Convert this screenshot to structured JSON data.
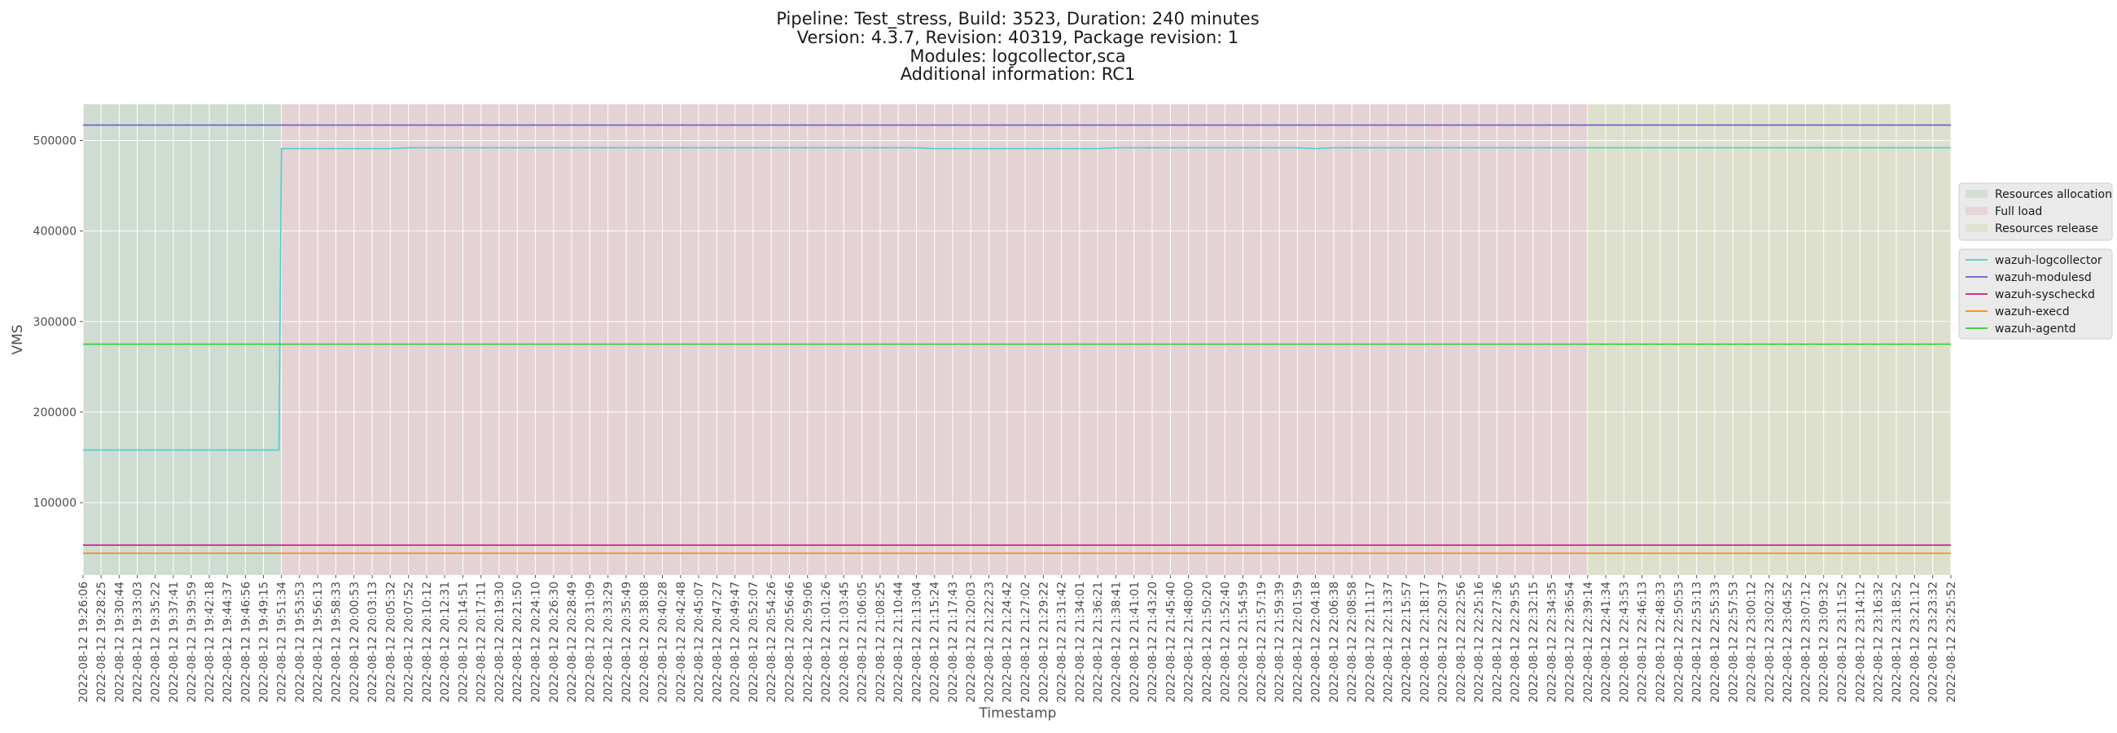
{
  "chart_data": {
    "type": "line",
    "title": [
      "Pipeline: Test_stress, Build: 3523, Duration: 240 minutes",
      "Version: 4.3.7, Revision: 40319, Package revision: 1",
      "Modules: logcollector,sca",
      "Additional information: RC1"
    ],
    "xlabel": "Timestamp",
    "ylabel": "VMS",
    "ylim": [
      20000,
      540000
    ],
    "yticks": [
      100000,
      200000,
      300000,
      400000,
      500000
    ],
    "grid": true,
    "legend_placement": "right",
    "x_tick_labels": [
      "2022-08-12 19:26:06",
      "2022-08-12 19:28:25",
      "2022-08-12 19:30:44",
      "2022-08-12 19:33:03",
      "2022-08-12 19:35:22",
      "2022-08-12 19:37:41",
      "2022-08-12 19:39:59",
      "2022-08-12 19:42:18",
      "2022-08-12 19:44:37",
      "2022-08-12 19:46:56",
      "2022-08-12 19:49:15",
      "2022-08-12 19:51:34",
      "2022-08-12 19:53:53",
      "2022-08-12 19:56:13",
      "2022-08-12 19:58:33",
      "2022-08-12 20:00:53",
      "2022-08-12 20:03:13",
      "2022-08-12 20:05:32",
      "2022-08-12 20:07:52",
      "2022-08-12 20:10:12",
      "2022-08-12 20:12:31",
      "2022-08-12 20:14:51",
      "2022-08-12 20:17:11",
      "2022-08-12 20:19:30",
      "2022-08-12 20:21:50",
      "2022-08-12 20:24:10",
      "2022-08-12 20:26:30",
      "2022-08-12 20:28:49",
      "2022-08-12 20:31:09",
      "2022-08-12 20:33:29",
      "2022-08-12 20:35:49",
      "2022-08-12 20:38:08",
      "2022-08-12 20:40:28",
      "2022-08-12 20:42:48",
      "2022-08-12 20:45:07",
      "2022-08-12 20:47:27",
      "2022-08-12 20:49:47",
      "2022-08-12 20:52:07",
      "2022-08-12 20:54:26",
      "2022-08-12 20:56:46",
      "2022-08-12 20:59:06",
      "2022-08-12 21:01:26",
      "2022-08-12 21:03:45",
      "2022-08-12 21:06:05",
      "2022-08-12 21:08:25",
      "2022-08-12 21:10:44",
      "2022-08-12 21:13:04",
      "2022-08-12 21:15:24",
      "2022-08-12 21:17:43",
      "2022-08-12 21:20:03",
      "2022-08-12 21:22:23",
      "2022-08-12 21:24:42",
      "2022-08-12 21:27:02",
      "2022-08-12 21:29:22",
      "2022-08-12 21:31:42",
      "2022-08-12 21:34:01",
      "2022-08-12 21:36:21",
      "2022-08-12 21:38:41",
      "2022-08-12 21:41:01",
      "2022-08-12 21:43:20",
      "2022-08-12 21:45:40",
      "2022-08-12 21:48:00",
      "2022-08-12 21:50:20",
      "2022-08-12 21:52:40",
      "2022-08-12 21:54:59",
      "2022-08-12 21:57:19",
      "2022-08-12 21:59:39",
      "2022-08-12 22:01:59",
      "2022-08-12 22:04:18",
      "2022-08-12 22:06:38",
      "2022-08-12 22:08:58",
      "2022-08-12 22:11:17",
      "2022-08-12 22:13:37",
      "2022-08-12 22:15:57",
      "2022-08-12 22:18:17",
      "2022-08-12 22:20:37",
      "2022-08-12 22:22:56",
      "2022-08-12 22:25:16",
      "2022-08-12 22:27:36",
      "2022-08-12 22:29:55",
      "2022-08-12 22:32:15",
      "2022-08-12 22:34:35",
      "2022-08-12 22:36:54",
      "2022-08-12 22:39:14",
      "2022-08-12 22:41:34",
      "2022-08-12 22:43:53",
      "2022-08-12 22:46:13",
      "2022-08-12 22:48:33",
      "2022-08-12 22:50:53",
      "2022-08-12 22:53:13",
      "2022-08-12 22:55:33",
      "2022-08-12 22:57:53",
      "2022-08-12 23:00:12",
      "2022-08-12 23:02:32",
      "2022-08-12 23:04:52",
      "2022-08-12 23:07:12",
      "2022-08-12 23:09:32",
      "2022-08-12 23:11:52",
      "2022-08-12 23:14:12",
      "2022-08-12 23:16:32",
      "2022-08-12 23:18:52",
      "2022-08-12 23:21:12",
      "2022-08-12 23:23:32",
      "2022-08-12 23:25:52"
    ],
    "phases": [
      {
        "name": "Resources allocation",
        "start": "2022-08-12 19:26:06",
        "end": "2022-08-12 19:51:34",
        "color": "#b8d4c0"
      },
      {
        "name": "Full load",
        "start": "2022-08-12 19:51:34",
        "end": "2022-08-12 22:39:14",
        "color": "#e3c0c4"
      },
      {
        "name": "Resources release",
        "start": "2022-08-12 22:39:14",
        "end": "2022-08-12 23:25:52",
        "color": "#d6dcb4"
      }
    ],
    "series": [
      {
        "name": "wazuh-logcollector",
        "color": "#48d1cc",
        "points": [
          {
            "x": "2022-08-12 19:26:06",
            "y": 158000
          },
          {
            "x": "2022-08-12 19:51:15",
            "y": 158000
          },
          {
            "x": "2022-08-12 19:51:34",
            "y": 491000
          },
          {
            "x": "2022-08-12 20:05:32",
            "y": 491000
          },
          {
            "x": "2022-08-12 20:07:52",
            "y": 492000
          },
          {
            "x": "2022-08-12 21:13:04",
            "y": 492000
          },
          {
            "x": "2022-08-12 21:15:24",
            "y": 491000
          },
          {
            "x": "2022-08-12 21:36:21",
            "y": 491000
          },
          {
            "x": "2022-08-12 21:38:41",
            "y": 492000
          },
          {
            "x": "2022-08-12 22:01:59",
            "y": 492000
          },
          {
            "x": "2022-08-12 22:04:18",
            "y": 491000
          },
          {
            "x": "2022-08-12 22:06:38",
            "y": 492000
          },
          {
            "x": "2022-08-12 22:46:13",
            "y": 492000
          },
          {
            "x": "2022-08-12 23:25:52",
            "y": 492000
          }
        ]
      },
      {
        "name": "wazuh-modulesd",
        "color": "#6a5acd",
        "points": [
          {
            "x": "2022-08-12 19:26:06",
            "y": 517000
          },
          {
            "x": "2022-08-12 23:25:52",
            "y": 517000
          }
        ]
      },
      {
        "name": "wazuh-syscheckd",
        "color": "#c71585",
        "points": [
          {
            "x": "2022-08-12 19:26:06",
            "y": 53000
          },
          {
            "x": "2022-08-12 23:25:52",
            "y": 53000
          }
        ]
      },
      {
        "name": "wazuh-execd",
        "color": "#ff8c00",
        "points": [
          {
            "x": "2022-08-12 19:26:06",
            "y": 44000
          },
          {
            "x": "2022-08-12 23:25:52",
            "y": 44000
          }
        ]
      },
      {
        "name": "wazuh-agentd",
        "color": "#32cd32",
        "points": [
          {
            "x": "2022-08-12 19:26:06",
            "y": 275000
          },
          {
            "x": "2022-08-12 23:25:52",
            "y": 275000
          }
        ]
      }
    ]
  }
}
